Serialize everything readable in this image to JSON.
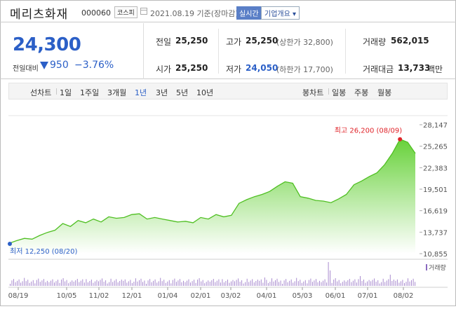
{
  "header": {
    "name": "메리츠화재",
    "code": "000060",
    "market_badge": "코스피",
    "date_text": "2021.08.19 기준(장마감)",
    "realtime_badge": "실시간",
    "company_info_button": "기업개요 ▾"
  },
  "summary": {
    "price": "24,300",
    "change_label": "전일대비",
    "change_value": "950",
    "change_pct": "−3.76%",
    "prev_close_label": "전일",
    "prev_close": "25,250",
    "high_label": "고가",
    "high": "25,250",
    "upper_limit": "(상한가 32,800)",
    "volume_label": "거래량",
    "volume": "562,015",
    "open_label": "시가",
    "open": "25,250",
    "low_label": "저가",
    "low": "24,050",
    "lower_limit": "(하한가 17,700)",
    "trade_value_label": "거래대금",
    "trade_value": "13,733",
    "trade_value_unit": "백만"
  },
  "period_bar": {
    "line_chart_label": "선차트",
    "line_periods": [
      "1일",
      "1주일",
      "3개월",
      "1년",
      "3년",
      "5년",
      "10년"
    ],
    "selected_line_period": "1년",
    "candle_label": "봉차트",
    "candle_periods": [
      "일봉",
      "주봉",
      "월봉"
    ]
  },
  "chart_data": {
    "type": "area",
    "y_ticks": [
      "28,147",
      "25,265",
      "22,383",
      "19,501",
      "16,619",
      "13,737",
      "10,855"
    ],
    "ylim": [
      10855,
      28147
    ],
    "x_ticks": [
      "08/19",
      "10/05",
      "11/02",
      "12/01",
      "01/04",
      "02/01",
      "03/02",
      "04/01",
      "05/03",
      "06/01",
      "07/01",
      "08/02"
    ],
    "high_annotation": "최고 26,200 (08/09)",
    "low_annotation": "최저 12,250 (08/20)",
    "volume_legend": "거래량",
    "x": [
      "08/20",
      "08/27",
      "09/03",
      "09/10",
      "09/17",
      "09/24",
      "10/01",
      "10/08",
      "10/15",
      "10/22",
      "10/29",
      "11/05",
      "11/12",
      "11/19",
      "11/26",
      "12/03",
      "12/10",
      "12/17",
      "12/24",
      "12/31",
      "01/07",
      "01/14",
      "01/21",
      "01/28",
      "02/04",
      "02/11",
      "02/18",
      "02/25",
      "03/04",
      "03/11",
      "03/18",
      "03/25",
      "04/01",
      "04/08",
      "04/15",
      "04/22",
      "04/29",
      "05/06",
      "05/13",
      "05/20",
      "05/27",
      "06/03",
      "06/10",
      "06/17",
      "06/24",
      "07/01",
      "07/08",
      "07/15",
      "07/22",
      "07/29",
      "08/05",
      "08/09",
      "08/12",
      "08/19"
    ],
    "values": [
      12250,
      12600,
      12900,
      12800,
      13300,
      13700,
      14000,
      14900,
      14500,
      15300,
      15000,
      15500,
      15100,
      15800,
      15600,
      15700,
      16100,
      16200,
      15500,
      15700,
      15500,
      15300,
      15100,
      15200,
      15000,
      15700,
      15500,
      16100,
      15800,
      16000,
      17600,
      18100,
      18500,
      18800,
      19200,
      19900,
      20500,
      20300,
      18500,
      18300,
      18000,
      17900,
      17700,
      18200,
      18800,
      20100,
      20600,
      21200,
      21700,
      22800,
      24300,
      26200,
      25800,
      24300
    ]
  }
}
